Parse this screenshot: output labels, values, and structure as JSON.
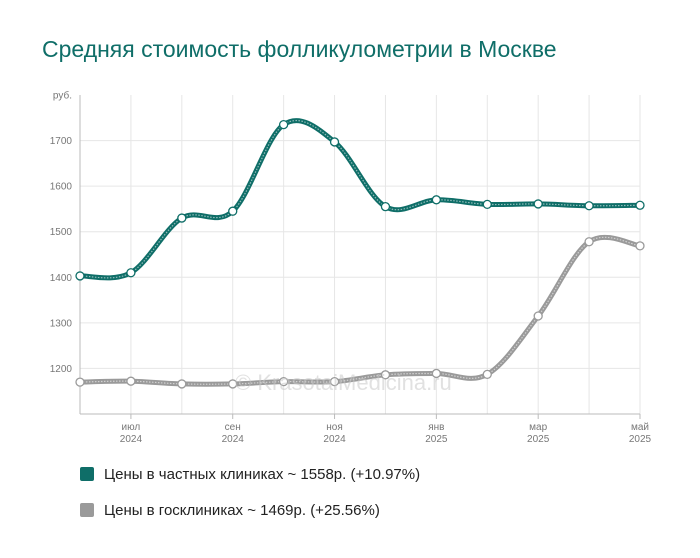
{
  "title": "Средняя стоимость фолликулометрии в Москве",
  "watermark": "© KrasotaiMedicina.ru",
  "colors": {
    "private": "#0f6e68",
    "public": "#9a9a9a",
    "title": "#0f6e68",
    "grid": "#e6e6e6"
  },
  "legend": [
    {
      "label": "Цены в частных клиниках ~ 1558р. (+10.97%)",
      "color": "#0f6e68"
    },
    {
      "label": "Цены в госклиниках ~ 1469р. (+25.56%)",
      "color": "#9a9a9a"
    }
  ],
  "chart_data": {
    "type": "line",
    "title": "Средняя стоимость фолликулометрии в Москве",
    "ylabel": "руб.",
    "ylim": [
      1100,
      1800
    ],
    "yticks": [
      1200,
      1300,
      1400,
      1500,
      1600,
      1700
    ],
    "grid": true,
    "legend_position": "bottom",
    "x": [
      "2024-06",
      "2024-07",
      "2024-08",
      "2024-09",
      "2024-10",
      "2024-11",
      "2024-12",
      "2025-01",
      "2025-02",
      "2025-03",
      "2025-04",
      "2025-05"
    ],
    "x_tick_labels": [
      {
        "month": "июл",
        "year": "2024",
        "index": 1
      },
      {
        "month": "сен",
        "year": "2024",
        "index": 3
      },
      {
        "month": "ноя",
        "year": "2024",
        "index": 5
      },
      {
        "month": "янв",
        "year": "2025",
        "index": 7
      },
      {
        "month": "мар",
        "year": "2025",
        "index": 9
      },
      {
        "month": "май",
        "year": "2025",
        "index": 11
      }
    ],
    "series": [
      {
        "name": "Цены в частных клиниках",
        "color": "#0f6e68",
        "values": [
          1403,
          1410,
          1530,
          1545,
          1735,
          1697,
          1555,
          1570,
          1560,
          1561,
          1557,
          1558
        ]
      },
      {
        "name": "Цены в госклиниках",
        "color": "#9a9a9a",
        "values": [
          1170,
          1172,
          1166,
          1166,
          1171,
          1171,
          1186,
          1189,
          1187,
          1315,
          1478,
          1469
        ]
      }
    ]
  }
}
